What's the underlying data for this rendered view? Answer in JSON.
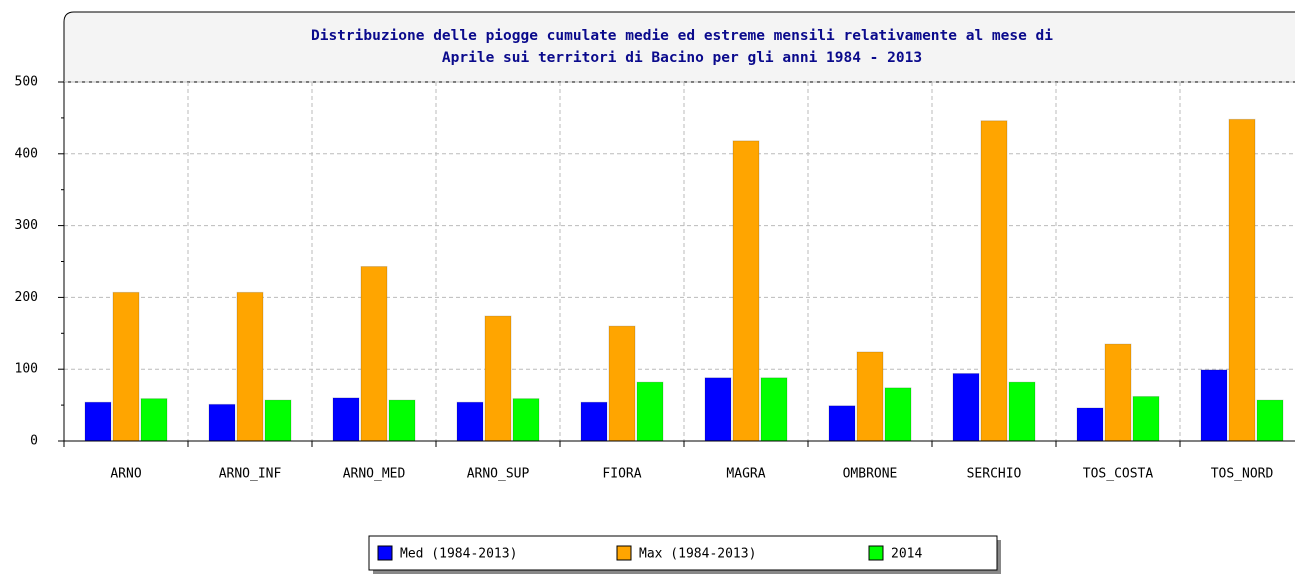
{
  "chart_data": {
    "type": "bar",
    "title": [
      "Distribuzione delle piogge cumulate medie ed estreme mensili relativamente al mese di",
      "Aprile sui territori di Bacino per gli anni 1984 - 2013"
    ],
    "categories": [
      "ARNO",
      "ARNO_INF",
      "ARNO_MED",
      "ARNO_SUP",
      "FIORA",
      "MAGRA",
      "OMBRONE",
      "SERCHIO",
      "TOS_COSTA",
      "TOS_NORD"
    ],
    "series": [
      {
        "name": "Med (1984-2013)",
        "color": "#0000ff",
        "values": [
          54,
          51,
          60,
          54,
          54,
          88,
          49,
          94,
          46,
          99
        ]
      },
      {
        "name": "Max (1984-2013)",
        "color": "#ffa500",
        "values": [
          207,
          207,
          243,
          174,
          160,
          418,
          124,
          446,
          135,
          448
        ]
      },
      {
        "name": "2014",
        "color": "#00ff00",
        "values": [
          59,
          57,
          57,
          59,
          82,
          88,
          74,
          82,
          62,
          57
        ]
      }
    ],
    "ylim": [
      0,
      500
    ],
    "yticks": [
      0,
      100,
      200,
      300,
      400,
      500
    ],
    "grid": true,
    "legend": "bottom"
  }
}
